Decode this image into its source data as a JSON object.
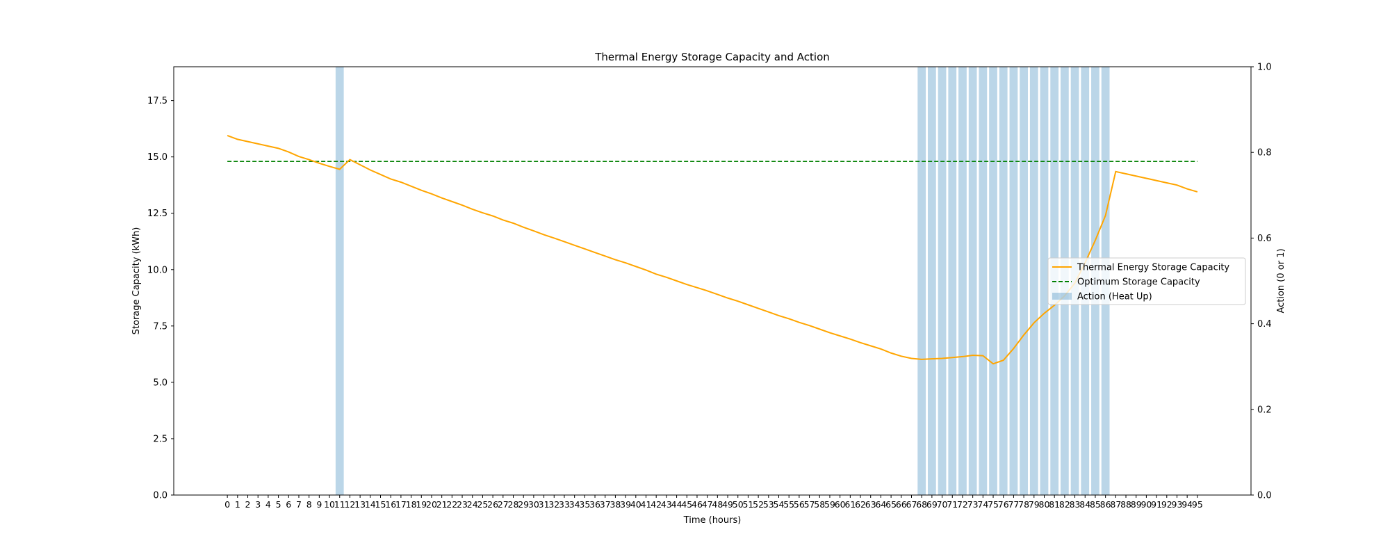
{
  "chart_data": {
    "type": "line",
    "title": "Thermal Energy Storage Capacity and Action",
    "xlabel": "Time (hours)",
    "ylabel": "Storage Capacity (kWh)",
    "y2label": "Action (0 or 1)",
    "xlim": [
      -5.25,
      100.25
    ],
    "ylim": [
      0,
      19
    ],
    "y2lim": [
      0,
      1
    ],
    "yticks": [
      "0.0",
      "2.5",
      "5.0",
      "7.5",
      "10.0",
      "12.5",
      "15.0",
      "17.5"
    ],
    "y2ticks": [
      "0.0",
      "0.2",
      "0.4",
      "0.6",
      "0.8",
      "1.0"
    ],
    "x": [
      0,
      1,
      2,
      3,
      4,
      5,
      6,
      7,
      8,
      9,
      10,
      11,
      12,
      13,
      14,
      15,
      16,
      17,
      18,
      19,
      20,
      21,
      22,
      23,
      24,
      25,
      26,
      27,
      28,
      29,
      30,
      31,
      32,
      33,
      34,
      35,
      36,
      37,
      38,
      39,
      40,
      41,
      42,
      43,
      44,
      45,
      46,
      47,
      48,
      49,
      50,
      51,
      52,
      53,
      54,
      55,
      56,
      57,
      58,
      59,
      60,
      61,
      62,
      63,
      64,
      65,
      66,
      67,
      68,
      69,
      70,
      71,
      72,
      73,
      74,
      75,
      76,
      77,
      78,
      79,
      80,
      81,
      82,
      83,
      84,
      85,
      86,
      87,
      88,
      89,
      90,
      91,
      92,
      93,
      94,
      95
    ],
    "series": [
      {
        "name": "Thermal Energy Storage Capacity",
        "color": "#ffa500",
        "style": "solid",
        "values": [
          15.95,
          15.78,
          15.68,
          15.58,
          15.48,
          15.38,
          15.22,
          15.02,
          14.88,
          14.72,
          14.58,
          14.45,
          14.88,
          14.65,
          14.42,
          14.22,
          14.02,
          13.88,
          13.7,
          13.52,
          13.36,
          13.18,
          13.02,
          12.86,
          12.68,
          12.52,
          12.38,
          12.2,
          12.06,
          11.88,
          11.72,
          11.55,
          11.4,
          11.24,
          11.08,
          10.92,
          10.76,
          10.6,
          10.44,
          10.3,
          10.14,
          9.98,
          9.8,
          9.66,
          9.5,
          9.34,
          9.2,
          9.06,
          8.9,
          8.74,
          8.6,
          8.44,
          8.28,
          8.12,
          7.96,
          7.82,
          7.66,
          7.52,
          7.36,
          7.2,
          7.06,
          6.92,
          6.76,
          6.62,
          6.48,
          6.3,
          6.16,
          6.06,
          6.02,
          6.04,
          6.06,
          6.1,
          6.14,
          6.2,
          6.18,
          5.82,
          5.98,
          6.5,
          7.1,
          7.64,
          8.06,
          8.42,
          8.84,
          9.4,
          10.3,
          11.3,
          12.4,
          14.35,
          14.25,
          14.15,
          14.05,
          13.95,
          13.85,
          13.75,
          13.58,
          13.45
        ]
      },
      {
        "name": "Optimum Storage Capacity",
        "color": "#008000",
        "style": "dashed",
        "values": [
          14.8,
          14.8,
          14.8,
          14.8,
          14.8,
          14.8,
          14.8,
          14.8,
          14.8,
          14.8,
          14.8,
          14.8,
          14.8,
          14.8,
          14.8,
          14.8,
          14.8,
          14.8,
          14.8,
          14.8,
          14.8,
          14.8,
          14.8,
          14.8,
          14.8,
          14.8,
          14.8,
          14.8,
          14.8,
          14.8,
          14.8,
          14.8,
          14.8,
          14.8,
          14.8,
          14.8,
          14.8,
          14.8,
          14.8,
          14.8,
          14.8,
          14.8,
          14.8,
          14.8,
          14.8,
          14.8,
          14.8,
          14.8,
          14.8,
          14.8,
          14.8,
          14.8,
          14.8,
          14.8,
          14.8,
          14.8,
          14.8,
          14.8,
          14.8,
          14.8,
          14.8,
          14.8,
          14.8,
          14.8,
          14.8,
          14.8,
          14.8,
          14.8,
          14.8,
          14.8,
          14.8,
          14.8,
          14.8,
          14.8,
          14.8,
          14.8,
          14.8,
          14.8,
          14.8,
          14.8,
          14.8,
          14.8,
          14.8,
          14.8,
          14.8,
          14.8,
          14.8,
          14.8,
          14.8,
          14.8,
          14.8,
          14.8,
          14.8,
          14.8,
          14.8,
          14.8
        ]
      },
      {
        "name": "Action (Heat Up)",
        "color": "#1f77b4",
        "style": "bar",
        "axis": "right",
        "values": [
          0,
          0,
          0,
          0,
          0,
          0,
          0,
          0,
          0,
          0,
          0,
          1,
          0,
          0,
          0,
          0,
          0,
          0,
          0,
          0,
          0,
          0,
          0,
          0,
          0,
          0,
          0,
          0,
          0,
          0,
          0,
          0,
          0,
          0,
          0,
          0,
          0,
          0,
          0,
          0,
          0,
          0,
          0,
          0,
          0,
          0,
          0,
          0,
          0,
          0,
          0,
          0,
          0,
          0,
          0,
          0,
          0,
          0,
          0,
          0,
          0,
          0,
          0,
          0,
          0,
          0,
          0,
          0,
          1,
          1,
          1,
          1,
          1,
          1,
          1,
          1,
          1,
          1,
          1,
          1,
          1,
          1,
          1,
          1,
          1,
          1,
          1,
          0,
          0,
          0,
          0,
          0,
          0,
          0,
          0,
          0
        ]
      }
    ],
    "legend_position": "center-right",
    "grid": false
  }
}
